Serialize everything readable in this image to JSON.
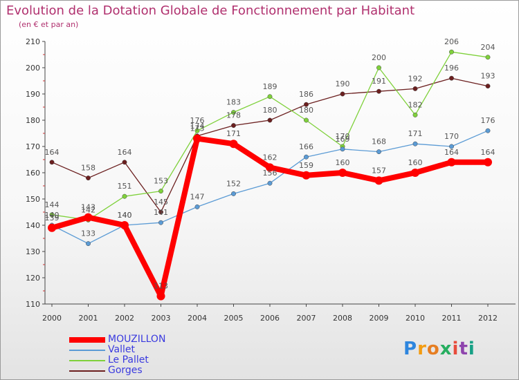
{
  "title": "Evolution de la Dotation Globale de Fonctionnement par Habitant",
  "subtitle": "(en € et par an)",
  "logo": "Proxiti",
  "chart_data": {
    "type": "line",
    "title": "Evolution de la Dotation Globale de Fonctionnement par Habitant",
    "subtitle": "(en € et par an)",
    "xlabel": "",
    "ylabel": "",
    "x": [
      "2000",
      "2001",
      "2002",
      "2003",
      "2004",
      "2005",
      "2006",
      "2007",
      "2008",
      "2009",
      "2010",
      "2011",
      "2012"
    ],
    "ylim": [
      110,
      210
    ],
    "yticks": [
      110,
      120,
      130,
      140,
      150,
      160,
      170,
      180,
      190,
      200,
      210
    ],
    "grid": false,
    "legend_position": "bottom-left",
    "series": [
      {
        "name": "MOUZILLON",
        "color": "#ff0000",
        "values": [
          139,
          143,
          140,
          113,
          173,
          171,
          162,
          159,
          160,
          157,
          160,
          164,
          164
        ]
      },
      {
        "name": "Vallet",
        "color": "#5b9bd5",
        "values": [
          140,
          133,
          140,
          141,
          147,
          152,
          156,
          166,
          169,
          168,
          171,
          170,
          176
        ]
      },
      {
        "name": "Le Pallet",
        "color": "#7fd13b",
        "values": [
          144,
          142,
          151,
          153,
          176,
          183,
          189,
          180,
          170,
          200,
          182,
          206,
          204
        ]
      },
      {
        "name": "Gorges",
        "color": "#6b1f1f",
        "values": [
          164,
          158,
          164,
          145,
          174,
          178,
          180,
          186,
          190,
          191,
          192,
          196,
          193
        ]
      }
    ]
  }
}
